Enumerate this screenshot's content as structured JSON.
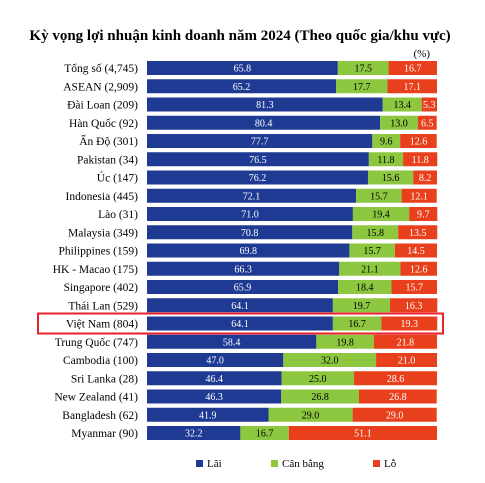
{
  "chart_data": {
    "type": "bar",
    "stacked": true,
    "orientation": "horizontal",
    "title": "Kỳ vọng lợi nhuận kinh doanh năm 2024 (Theo quốc gia/khu vực)",
    "unit": "(%)",
    "categories": [
      "Tổng số (4,745)",
      "ASEAN (2,909)",
      "Đài Loan (209)",
      "Hàn Quốc (92)",
      "Ấn Độ (301)",
      "Pakistan (34)",
      "Úc (147)",
      "Indonesia (445)",
      "Lào (31)",
      "Malaysia (349)",
      "Philippines (159)",
      "HK - Macao (175)",
      "Singapore (402)",
      "Thái Lan (529)",
      "Việt Nam (804)",
      "Trung Quốc (747)",
      "Cambodia (100)",
      "Sri Lanka (28)",
      "New Zealand (41)",
      "Bangladesh (62)",
      "Myanmar (90)"
    ],
    "series": [
      {
        "name": "Lãi",
        "color": "#1f3a93",
        "values": [
          65.8,
          65.2,
          81.3,
          80.4,
          77.7,
          76.5,
          76.2,
          72.1,
          71.0,
          70.8,
          69.8,
          66.3,
          65.9,
          64.1,
          64.1,
          58.4,
          47.0,
          46.4,
          46.3,
          41.9,
          32.2
        ]
      },
      {
        "name": "Cân bằng",
        "color": "#8dc63f",
        "values": [
          17.5,
          17.7,
          13.4,
          13.0,
          9.6,
          11.8,
          15.6,
          15.7,
          19.4,
          15.8,
          15.7,
          21.1,
          18.4,
          19.7,
          16.7,
          19.8,
          32.0,
          25.0,
          26.8,
          29.0,
          16.7
        ]
      },
      {
        "name": "Lỗ",
        "color": "#e8401c",
        "values": [
          16.7,
          17.1,
          5.3,
          6.5,
          12.6,
          11.8,
          8.2,
          12.1,
          9.7,
          13.5,
          14.5,
          12.6,
          15.7,
          16.3,
          19.3,
          21.8,
          21.0,
          28.6,
          26.8,
          29.0,
          51.1
        ]
      }
    ],
    "value_labels": [
      [
        "65.8",
        "17.5",
        "16.7"
      ],
      [
        "65.2",
        "17.7",
        "17.1"
      ],
      [
        "81.3",
        "13.4",
        "5.3"
      ],
      [
        "80.4",
        "13.0",
        "6.5"
      ],
      [
        "77.7",
        "9.6",
        "12.6"
      ],
      [
        "76.5",
        "11.8",
        "11.8"
      ],
      [
        "76.2",
        "15.6",
        "8.2"
      ],
      [
        "72.1",
        "15.7",
        "12.1"
      ],
      [
        "71.0",
        "19.4",
        "9.7"
      ],
      [
        "70.8",
        "15.8",
        "13.5"
      ],
      [
        "69.8",
        "15.7",
        "14.5"
      ],
      [
        "66.3",
        "21.1",
        "12.6"
      ],
      [
        "65.9",
        "18.4",
        "15.7"
      ],
      [
        "64.1",
        "19.7",
        "16.3"
      ],
      [
        "64.1",
        "16.7",
        "19.3"
      ],
      [
        "58.4",
        "19.8",
        "21.8"
      ],
      [
        "47.0",
        "32.0",
        "21.0"
      ],
      [
        "46.4",
        "25.0",
        "28.6"
      ],
      [
        "46.3",
        "26.8",
        "26.8"
      ],
      [
        "41.9",
        "29.0",
        "29.0"
      ],
      [
        "32.2",
        "16.7",
        "51.1"
      ]
    ],
    "highlighted_category": "Việt Nam (804)",
    "highlight_color": "#e8202a",
    "xlim": [
      0,
      100
    ],
    "grid": false,
    "legend_position": "bottom"
  }
}
